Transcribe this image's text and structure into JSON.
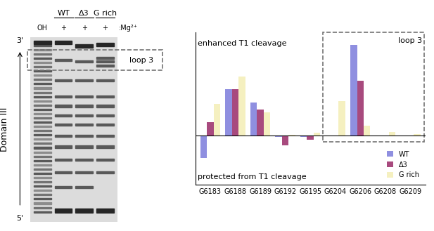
{
  "chart_data": {
    "type": "bar",
    "categories": [
      "G6183",
      "G6188",
      "G6189",
      "G6192",
      "G6195",
      "G6204",
      "G6206",
      "G6208",
      "G6209"
    ],
    "series": [
      {
        "name": "WT",
        "color": "#8f8fe0",
        "values": [
          -4.5,
          9.5,
          6.8,
          -0.3,
          -0.2,
          0,
          18.5,
          0,
          0
        ]
      },
      {
        "name": "Δ3",
        "color": "#a84a7e",
        "values": [
          2.8,
          9.5,
          5.3,
          -2.0,
          -0.8,
          0,
          11.2,
          0,
          0
        ]
      },
      {
        "name": "G rich",
        "color": "#f5f0c0",
        "values": [
          6.5,
          12.0,
          4.8,
          0.2,
          0.6,
          7.0,
          2.0,
          0.8,
          0.3
        ]
      }
    ],
    "ylim": [
      -10,
      21
    ],
    "tick_labels": "x",
    "legend": "lower right",
    "annotations": {
      "top": "enhanced T1 cleavage",
      "bottom": "protected from T1 cleavage",
      "region": "loop 3"
    }
  },
  "gel": {
    "groups": [
      "WT",
      "Δ3",
      "G rich"
    ],
    "lanes": [
      "OH",
      "+",
      "+",
      "+"
    ],
    "condition": ":Mg²⁺",
    "ends": [
      "3'",
      "5'"
    ],
    "label": "Domain III",
    "region": "loop 3"
  }
}
